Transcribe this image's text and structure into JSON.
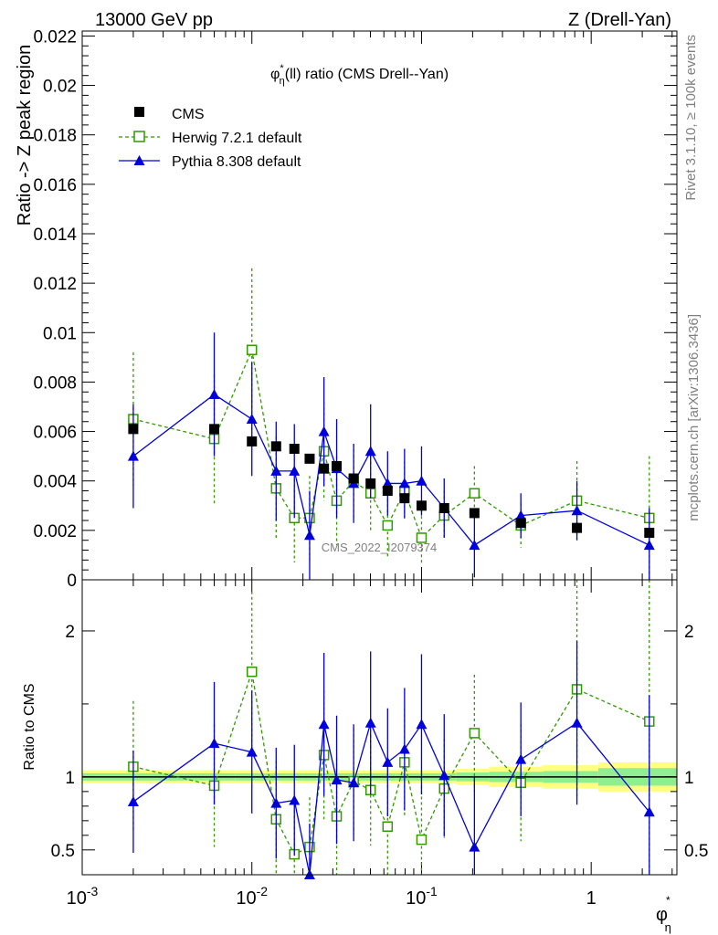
{
  "header": {
    "left": "13000 GeV pp",
    "right": "Z (Drell-Yan)"
  },
  "side_labels": {
    "rivet": "Rivet 3.1.10, ≥ 100k events",
    "mcplots": "mcplots.cern.ch [arXiv:1306.3436]"
  },
  "watermark": "CMS_2022_I2079374",
  "colors": {
    "cms": "#000000",
    "herwig": "#339900",
    "pythia": "#0000dd",
    "band_inner": "#90ee90",
    "band_outer": "#ffff80"
  },
  "chart_data": [
    {
      "type": "scatter",
      "panel": "main",
      "title": "φ*η(ll) ratio (CMS Drell--Yan)",
      "title_parts": {
        "phi": "φ",
        "sup": "*",
        "sub": "η",
        "rest": "(ll) ratio (CMS Drell--Yan)"
      },
      "ylabel": "Ratio -> Z peak region",
      "xscale": "log",
      "xlim": [
        0.001,
        3.2
      ],
      "ylim": [
        0,
        0.0222
      ],
      "yticks": [
        "0",
        "0.002",
        "0.004",
        "0.006",
        "0.008",
        "0.01",
        "0.012",
        "0.014",
        "0.016",
        "0.018",
        "0.02",
        "0.022"
      ],
      "legend_position": "top-left",
      "x": [
        0.002,
        0.006,
        0.01,
        0.0139,
        0.0178,
        0.0219,
        0.0266,
        0.0316,
        0.0398,
        0.0501,
        0.0631,
        0.0794,
        0.1,
        0.136,
        0.205,
        0.385,
        0.824,
        2.2
      ],
      "series": [
        {
          "name": "CMS",
          "style": "square-filled",
          "values": [
            0.0061,
            0.0061,
            0.0056,
            0.0054,
            0.0053,
            0.0049,
            0.0045,
            0.0046,
            0.0041,
            0.0039,
            0.0036,
            0.0033,
            0.003,
            0.0029,
            0.0027,
            0.0023,
            0.0021,
            0.0019
          ],
          "errors": [
            0.0002,
            0.0002,
            0.0002,
            0.0002,
            0.0002,
            0.0002,
            0.0002,
            0.0002,
            0.0002,
            0.0002,
            0.0002,
            0.0002,
            0.0002,
            0.0002,
            0.0002,
            0.0002,
            0.0002,
            0.0002
          ]
        },
        {
          "name": "Herwig 7.2.1 default",
          "style": "square-open-dashed",
          "values": [
            0.0065,
            0.0057,
            0.0093,
            0.0037,
            0.0025,
            0.0025,
            0.0052,
            0.0032,
            0.004,
            0.0035,
            0.0022,
            0.0036,
            0.0017,
            0.0026,
            0.0035,
            0.0022,
            0.0032,
            0.0025
          ],
          "errors": [
            0.0027,
            0.0026,
            0.0033,
            0.0021,
            0.0018,
            0.0017,
            0.002,
            0.0018,
            0.0015,
            0.0015,
            0.0013,
            0.0012,
            0.0011,
            0.001,
            0.0011,
            0.0009,
            0.0016,
            0.0025
          ]
        },
        {
          "name": "Pythia 8.308 default",
          "style": "triangle-filled-solid",
          "values": [
            0.005,
            0.0075,
            0.0065,
            0.0044,
            0.0044,
            0.0018,
            0.006,
            0.0045,
            0.0039,
            0.0052,
            0.0039,
            0.0039,
            0.004,
            0.0029,
            0.0014,
            0.0026,
            0.0028,
            0.0014
          ],
          "errors": [
            0.0021,
            0.0025,
            0.0023,
            0.002,
            0.0019,
            0.0018,
            0.0022,
            0.002,
            0.0016,
            0.0019,
            0.0013,
            0.0014,
            0.0014,
            0.0012,
            0.0013,
            0.0009,
            0.0012,
            0.0015
          ]
        }
      ]
    },
    {
      "type": "scatter",
      "panel": "ratio",
      "ylabel": "Ratio to CMS",
      "xlabel_parts": {
        "phi": "φ",
        "sup": "*",
        "sub": "η"
      },
      "xscale": "log",
      "xlim": [
        0.001,
        3.2
      ],
      "ylim": [
        0.33,
        2.35
      ],
      "yticks": [
        "0.5",
        "1",
        "2"
      ],
      "xticks": [
        "10^-3",
        "10^-2",
        "10^-1",
        "1"
      ],
      "x": [
        0.002,
        0.006,
        0.01,
        0.0139,
        0.0178,
        0.0219,
        0.0266,
        0.0316,
        0.0398,
        0.0501,
        0.0631,
        0.0794,
        0.1,
        0.136,
        0.205,
        0.385,
        0.824,
        2.2
      ],
      "series": [
        {
          "name": "Herwig 7.2.1 default",
          "values": [
            1.07,
            0.94,
            1.72,
            0.71,
            0.47,
            0.52,
            1.15,
            0.73,
            0.97,
            0.91,
            0.66,
            1.1,
            0.57,
            0.92,
            1.3,
            0.96,
            1.6,
            1.38
          ],
          "errors": [
            0.45,
            0.42,
            0.55,
            0.4,
            0.34,
            0.34,
            0.44,
            0.4,
            0.36,
            0.38,
            0.36,
            0.37,
            0.37,
            0.34,
            0.4,
            0.4,
            0.75,
            1.3
          ]
        },
        {
          "name": "Pythia 8.308 default",
          "values": [
            0.83,
            1.23,
            1.17,
            0.82,
            0.84,
            0.33,
            1.36,
            0.98,
            0.96,
            1.37,
            1.1,
            1.19,
            1.36,
            1.01,
            0.52,
            1.12,
            1.37,
            0.76
          ],
          "errors": [
            0.35,
            0.42,
            0.42,
            0.38,
            0.38,
            0.35,
            0.49,
            0.44,
            0.4,
            0.49,
            0.37,
            0.42,
            0.48,
            0.42,
            0.48,
            0.39,
            0.56,
            0.8
          ]
        }
      ],
      "band": {
        "edges": [
          0.001,
          0.004,
          0.008,
          0.012,
          0.016,
          0.02,
          0.024,
          0.029,
          0.035,
          0.045,
          0.056,
          0.071,
          0.089,
          0.112,
          0.16,
          0.25,
          0.52,
          1.1,
          3.2
        ],
        "inner": [
          0.025,
          0.025,
          0.025,
          0.025,
          0.025,
          0.025,
          0.025,
          0.025,
          0.025,
          0.025,
          0.025,
          0.025,
          0.025,
          0.025,
          0.03,
          0.035,
          0.04,
          0.06
        ],
        "outer": [
          0.045,
          0.045,
          0.045,
          0.045,
          0.045,
          0.045,
          0.045,
          0.045,
          0.045,
          0.045,
          0.045,
          0.045,
          0.045,
          0.045,
          0.055,
          0.07,
          0.08,
          0.1
        ]
      }
    }
  ]
}
